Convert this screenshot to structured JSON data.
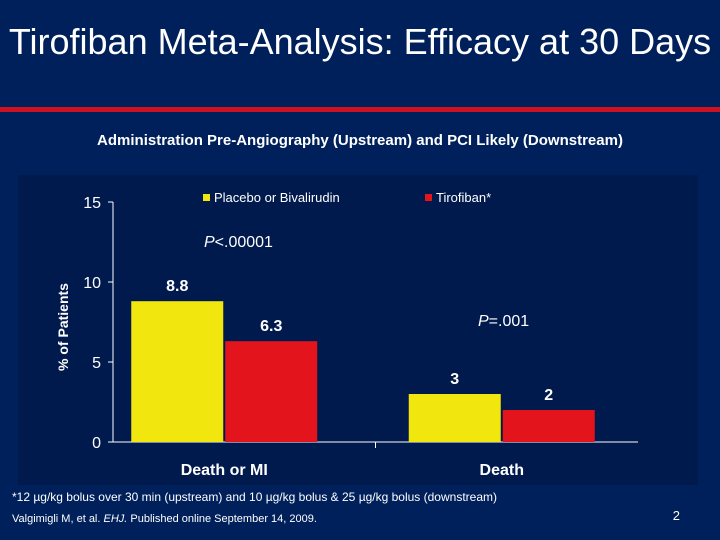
{
  "slide": {
    "title": "Tirofiban Meta-Analysis: Efficacy at 30 Days",
    "subtitle": "Administration Pre-Angiography (Upstream) and  PCI Likely (Downstream)",
    "footnote": "*12 µg/kg bolus over 30 min (upstream) and 10 µg/kg bolus & 25 µg/kg bolus (downstream)",
    "source_prefix": "Valgimigli M, et al. ",
    "source_journal": "EHJ.",
    "source_suffix": " Published online September 14, 2009.",
    "page_number": "2"
  },
  "colors": {
    "background": "#00205b",
    "rule": "#cc1122",
    "placebo": "#f2e60f",
    "tirofiban": "#e3141c"
  },
  "chart_data": {
    "type": "bar",
    "categories": [
      "Death or MI",
      "Death"
    ],
    "series": [
      {
        "name": "Placebo or Bivalirudin",
        "values": [
          8.8,
          3
        ],
        "labels": [
          "8.8",
          "3"
        ]
      },
      {
        "name": "Tirofiban*",
        "values": [
          6.3,
          2
        ],
        "labels": [
          "6.3",
          "2"
        ]
      }
    ],
    "ylabel": "% of Patients",
    "ylim": [
      0,
      15
    ],
    "yticks": [
      0,
      5,
      10,
      15
    ],
    "grid": false,
    "legend": "top",
    "annotations": [
      {
        "prefix": "P",
        "text": "<.00001",
        "category": 0
      },
      {
        "prefix": "P",
        "text": "=.001",
        "category": 1
      }
    ]
  }
}
